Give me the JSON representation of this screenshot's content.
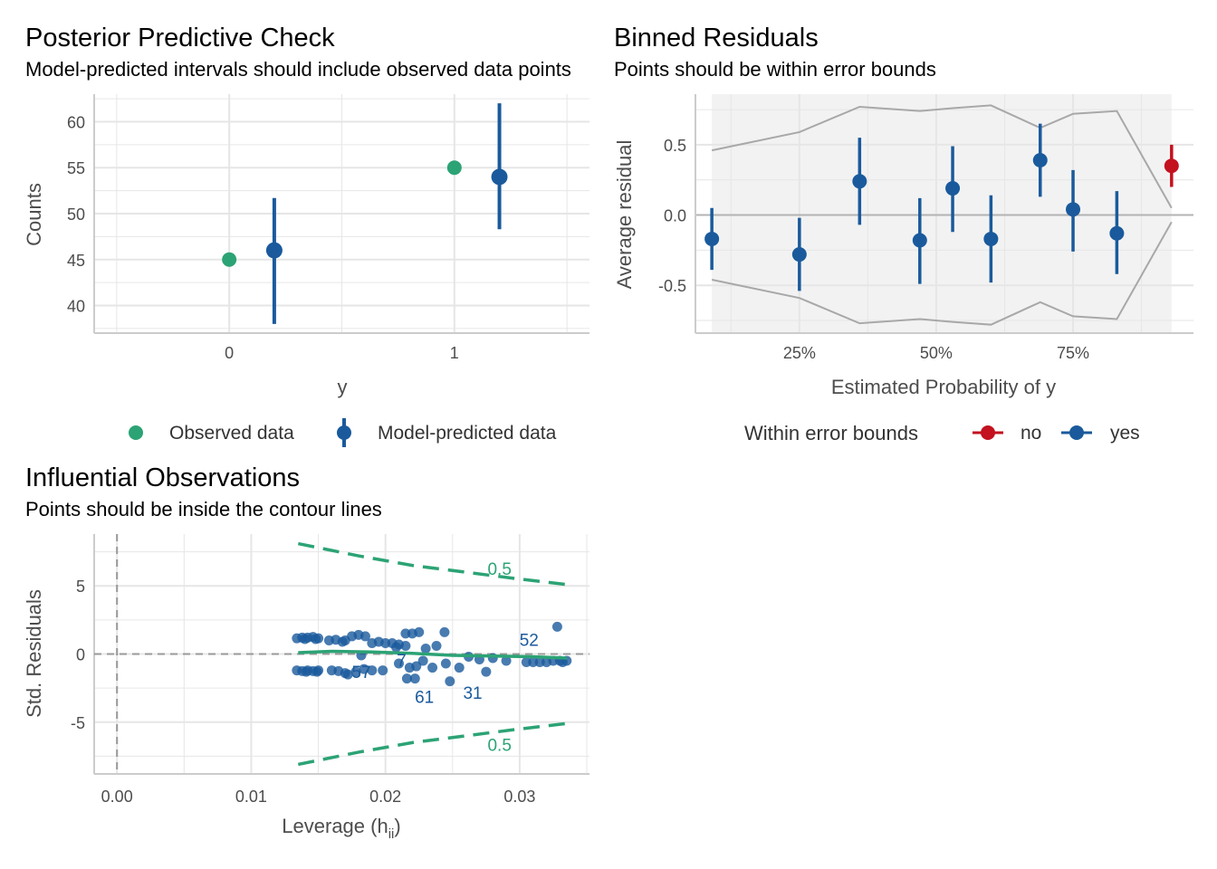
{
  "colors": {
    "observed": "#2ca375",
    "predicted": "#1a5a9c",
    "no": "#c3111f",
    "yes": "#1a5a9c",
    "contour": "#2ca375",
    "grid": "#e6e6e6",
    "bounds": "#a8a8a8"
  },
  "chart_data": [
    {
      "type": "scatter",
      "title": "Posterior Predictive Check",
      "subtitle": "Model-predicted intervals should include observed data points",
      "xlabel": "y",
      "ylabel": "Counts",
      "x_ticks": [
        "0",
        "1"
      ],
      "y_ticks": [
        "40",
        "45",
        "50",
        "55",
        "60"
      ],
      "ylim": [
        37.0,
        63.0
      ],
      "series": [
        {
          "name": "Observed data",
          "points": [
            {
              "x": 0,
              "y": 45
            },
            {
              "x": 1,
              "y": 55
            }
          ]
        },
        {
          "name": "Model-predicted data",
          "points": [
            {
              "x": 0,
              "y": 46,
              "low": 38,
              "high": 51.7
            },
            {
              "x": 1,
              "y": 54,
              "low": 48.3,
              "high": 62
            }
          ]
        }
      ],
      "legend_position": "bottom"
    },
    {
      "type": "scatter",
      "title": "Binned Residuals",
      "subtitle": "Points should be within error bounds",
      "xlabel": "Estimated Probability of y",
      "ylabel": "Average residual",
      "x_ticks": [
        "25%",
        "50%",
        "75%"
      ],
      "y_ticks": [
        "-0.5",
        "0.0",
        "0.5"
      ],
      "xlim": [
        0.06,
        0.97
      ],
      "ylim": [
        -0.84,
        0.86
      ],
      "legend_title": "Within error bounds",
      "legend_labels": [
        "no",
        "yes"
      ],
      "points": [
        {
          "x": 0.09,
          "y": -0.17,
          "low": -0.39,
          "high": 0.05,
          "group": "yes"
        },
        {
          "x": 0.25,
          "y": -0.28,
          "low": -0.54,
          "high": -0.02,
          "group": "yes"
        },
        {
          "x": 0.36,
          "y": 0.24,
          "low": -0.07,
          "high": 0.55,
          "group": "yes"
        },
        {
          "x": 0.47,
          "y": -0.18,
          "low": -0.49,
          "high": 0.12,
          "group": "yes"
        },
        {
          "x": 0.53,
          "y": 0.19,
          "low": -0.12,
          "high": 0.49,
          "group": "yes"
        },
        {
          "x": 0.6,
          "y": -0.17,
          "low": -0.48,
          "high": 0.14,
          "group": "yes"
        },
        {
          "x": 0.69,
          "y": 0.39,
          "low": 0.13,
          "high": 0.65,
          "group": "yes"
        },
        {
          "x": 0.75,
          "y": 0.04,
          "low": -0.26,
          "high": 0.32,
          "group": "yes"
        },
        {
          "x": 0.83,
          "y": -0.13,
          "low": -0.42,
          "high": 0.17,
          "group": "yes"
        },
        {
          "x": 0.93,
          "y": 0.35,
          "low": 0.2,
          "high": 0.5,
          "group": "no"
        }
      ],
      "bounds_x": [
        0.09,
        0.25,
        0.36,
        0.47,
        0.53,
        0.6,
        0.69,
        0.75,
        0.83,
        0.93
      ],
      "bounds_upper": [
        0.46,
        0.59,
        0.77,
        0.74,
        0.76,
        0.78,
        0.62,
        0.72,
        0.74,
        0.05
      ],
      "bounds_lower": [
        -0.46,
        -0.59,
        -0.77,
        -0.74,
        -0.76,
        -0.78,
        -0.62,
        -0.72,
        -0.74,
        -0.05
      ],
      "legend_position": "bottom"
    },
    {
      "type": "scatter",
      "title": "Influential Observations",
      "subtitle": "Points should be inside the contour lines",
      "xlabel": "Leverage (h",
      "xlabel_sub": "ii",
      "xlabel_close": ")",
      "ylabel": "Std. Residuals",
      "x_ticks": [
        "0.00",
        "0.01",
        "0.02",
        "0.03"
      ],
      "y_ticks": [
        "-5",
        "0",
        "5"
      ],
      "xlim": [
        -0.0017,
        0.0352
      ],
      "ylim": [
        -8.8,
        8.8
      ],
      "contour_label": "0.5",
      "contour_upper": [
        [
          0.0135,
          8.1
        ],
        [
          0.018,
          7.2
        ],
        [
          0.022,
          6.5
        ],
        [
          0.026,
          6.0
        ],
        [
          0.03,
          5.5
        ],
        [
          0.0335,
          5.1
        ]
      ],
      "contour_lower": [
        [
          0.0135,
          -8.1
        ],
        [
          0.018,
          -7.2
        ],
        [
          0.022,
          -6.5
        ],
        [
          0.026,
          -6.0
        ],
        [
          0.03,
          -5.5
        ],
        [
          0.0335,
          -5.1
        ]
      ],
      "smooth": [
        [
          0.0135,
          0.1
        ],
        [
          0.016,
          0.2
        ],
        [
          0.019,
          0.15
        ],
        [
          0.022,
          0.05
        ],
        [
          0.025,
          -0.1
        ],
        [
          0.028,
          -0.15
        ],
        [
          0.031,
          -0.2
        ],
        [
          0.0335,
          -0.3
        ]
      ],
      "points": [
        [
          0.0134,
          1.15
        ],
        [
          0.0138,
          1.2
        ],
        [
          0.0142,
          1.2
        ],
        [
          0.0146,
          1.25
        ],
        [
          0.015,
          1.15
        ],
        [
          0.014,
          1.1
        ],
        [
          0.0148,
          1.1
        ],
        [
          0.0134,
          -1.2
        ],
        [
          0.0138,
          -1.25
        ],
        [
          0.0142,
          -1.2
        ],
        [
          0.0146,
          -1.25
        ],
        [
          0.015,
          -1.2
        ],
        [
          0.0141,
          -1.3
        ],
        [
          0.0149,
          -1.3
        ],
        [
          0.0158,
          1.0
        ],
        [
          0.0163,
          1.05
        ],
        [
          0.017,
          1.0
        ],
        [
          0.0175,
          1.3
        ],
        [
          0.018,
          1.4
        ],
        [
          0.0185,
          1.3
        ],
        [
          0.0168,
          0.9
        ],
        [
          0.016,
          -1.2
        ],
        [
          0.0165,
          -1.25
        ],
        [
          0.017,
          -1.4
        ],
        [
          0.0178,
          -1.3
        ],
        [
          0.0184,
          -1.1
        ],
        [
          0.0172,
          -1.5
        ],
        [
          0.0182,
          -0.1
        ],
        [
          0.019,
          0.8
        ],
        [
          0.0195,
          0.9
        ],
        [
          0.02,
          0.8
        ],
        [
          0.0205,
          0.8
        ],
        [
          0.021,
          0.7
        ],
        [
          0.0215,
          1.5
        ],
        [
          0.022,
          1.5
        ],
        [
          0.0225,
          1.6
        ],
        [
          0.023,
          0.4
        ],
        [
          0.0238,
          0.6
        ],
        [
          0.0244,
          1.6
        ],
        [
          0.0215,
          0.6
        ],
        [
          0.0208,
          0.5
        ],
        [
          0.019,
          -1.2
        ],
        [
          0.0198,
          -1.2
        ],
        [
          0.021,
          -0.7
        ],
        [
          0.0218,
          -1.0
        ],
        [
          0.0223,
          -0.9
        ],
        [
          0.0216,
          -1.8
        ],
        [
          0.0222,
          -1.8
        ],
        [
          0.0235,
          -1.0
        ],
        [
          0.0248,
          -2.0
        ],
        [
          0.0255,
          -1.0
        ],
        [
          0.0262,
          -0.2
        ],
        [
          0.027,
          -0.4
        ],
        [
          0.0245,
          -0.7
        ],
        [
          0.0228,
          -0.5
        ],
        [
          0.0275,
          -1.3
        ],
        [
          0.028,
          -0.3
        ],
        [
          0.029,
          -0.5
        ],
        [
          0.0305,
          -0.6
        ],
        [
          0.031,
          -0.6
        ],
        [
          0.0315,
          -0.6
        ],
        [
          0.032,
          -0.6
        ],
        [
          0.0325,
          -0.5
        ],
        [
          0.033,
          -0.5
        ],
        [
          0.0335,
          -0.5
        ],
        [
          0.0328,
          2.0
        ],
        [
          0.0332,
          -0.6
        ]
      ],
      "labels": [
        {
          "text": "52",
          "x": 0.0307,
          "y": 1.0
        },
        {
          "text": "57",
          "x": 0.0182,
          "y": -1.35
        },
        {
          "text": "7",
          "x": 0.0212,
          "y": -0.5
        },
        {
          "text": "61",
          "x": 0.0229,
          "y": -3.2
        },
        {
          "text": "31",
          "x": 0.0265,
          "y": -2.9
        }
      ]
    }
  ]
}
